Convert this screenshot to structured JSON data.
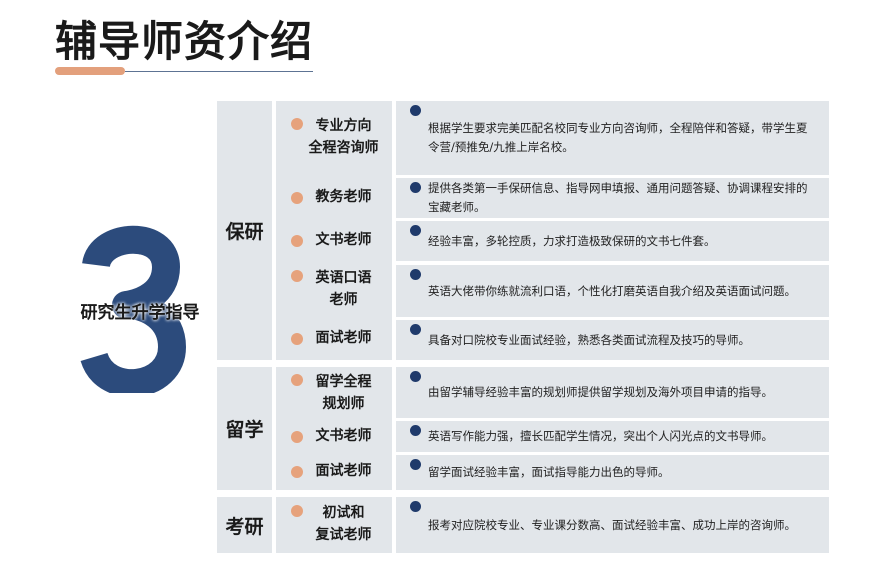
{
  "title": "辅导师资介绍",
  "big_number": "3",
  "subtitle": "研究生升学指导",
  "colors": {
    "accent": "#e3a07c",
    "navy": "#2c4b7c",
    "cell": "#e2e6ea"
  },
  "groups": [
    {
      "name": "保研",
      "rows": [
        {
          "role": "专业方向\n全程咨询师",
          "desc": "根据学生要求完美匹配名校同专业方向咨询师，全程陪伴和答疑，带学生夏令营/预推免/九推上岸名校。"
        },
        {
          "role": "教务老师",
          "desc": "提供各类第一手保研信息、指导网申填报、通用问题答疑、协调课程安排的宝藏老师。"
        },
        {
          "role": "文书老师",
          "desc": "经验丰富，多轮控质，力求打造极致保研的文书七件套。"
        },
        {
          "role": "英语口语\n老师",
          "desc": "英语大佬带你练就流利口语，个性化打磨英语自我介绍及英语面试问题。"
        },
        {
          "role": "面试老师",
          "desc": "具备对口院校专业面试经验，熟悉各类面试流程及技巧的导师。"
        }
      ]
    },
    {
      "name": "留学",
      "rows": [
        {
          "role": "留学全程\n规划师",
          "desc": "由留学辅导经验丰富的规划师提供留学规划及海外项目申请的指导。"
        },
        {
          "role": "文书老师",
          "desc": "英语写作能力强，擅长匹配学生情况，突出个人闪光点的文书导师。"
        },
        {
          "role": "面试老师",
          "desc": "留学面试经验丰富，面试指导能力出色的导师。"
        }
      ]
    },
    {
      "name": "考研",
      "rows": [
        {
          "role": "初试和\n复试老师",
          "desc": "报考对应院校专业、专业课分数高、面试经验丰富、成功上岸的咨询师。"
        }
      ]
    }
  ]
}
